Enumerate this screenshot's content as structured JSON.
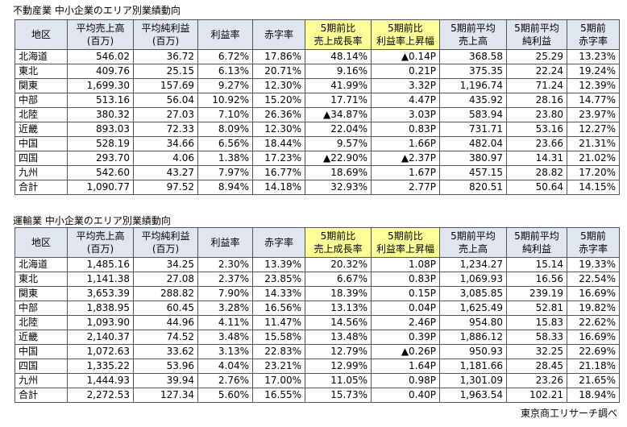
{
  "tables": [
    {
      "title": "不動産業 中小企業のエリア別業績動向",
      "header": [
        [
          "地区"
        ],
        [
          "平均売上高",
          "(百万)"
        ],
        [
          "平均純利益",
          "(百万)"
        ],
        [
          "利益率"
        ],
        [
          "赤字率"
        ],
        [
          "5期前比",
          "売上成長率"
        ],
        [
          "5期前比",
          "利益率上昇幅"
        ],
        [
          "5期前平均",
          "売上高"
        ],
        [
          "5期前平均",
          "純利益"
        ],
        [
          "5期前",
          "赤字率"
        ]
      ],
      "rows": [
        [
          "北海道",
          "546.02",
          "36.72",
          "6.72%",
          "17.86%",
          "48.14%",
          "▲0.14P",
          "368.58",
          "25.29",
          "13.23%"
        ],
        [
          "東北",
          "409.76",
          "25.15",
          "6.13%",
          "20.71%",
          "9.16%",
          "0.21P",
          "375.35",
          "22.24",
          "19.24%"
        ],
        [
          "関東",
          "1,699.30",
          "157.69",
          "9.27%",
          "12.30%",
          "41.99%",
          "3.32P",
          "1,196.74",
          "71.24",
          "12.39%"
        ],
        [
          "中部",
          "513.16",
          "56.04",
          "10.92%",
          "15.20%",
          "17.71%",
          "4.47P",
          "435.92",
          "28.16",
          "14.77%"
        ],
        [
          "北陸",
          "380.32",
          "27.03",
          "7.10%",
          "26.36%",
          "▲34.87%",
          "3.03P",
          "583.94",
          "23.80",
          "23.97%"
        ],
        [
          "近畿",
          "893.03",
          "72.33",
          "8.09%",
          "12.30%",
          "22.04%",
          "0.83P",
          "731.71",
          "53.16",
          "12.27%"
        ],
        [
          "中国",
          "528.19",
          "34.66",
          "6.56%",
          "18.44%",
          "9.57%",
          "1.66P",
          "482.04",
          "23.66",
          "21.31%"
        ],
        [
          "四国",
          "293.70",
          "4.06",
          "1.38%",
          "17.23%",
          "▲22.90%",
          "▲2.37P",
          "380.97",
          "14.31",
          "21.02%"
        ],
        [
          "九州",
          "542.60",
          "43.27",
          "7.97%",
          "16.77%",
          "18.69%",
          "1.67P",
          "457.15",
          "28.82",
          "17.20%"
        ],
        [
          "合計",
          "1,090.77",
          "97.52",
          "8.94%",
          "14.18%",
          "32.93%",
          "2.77P",
          "820.51",
          "50.64",
          "14.15%"
        ]
      ]
    },
    {
      "title": "運輸業 中小企業のエリア別業績動向",
      "header": [
        [
          "地区"
        ],
        [
          "平均売上高",
          "(百万)"
        ],
        [
          "平均純利益",
          "(百万)"
        ],
        [
          "利益率"
        ],
        [
          "赤字率"
        ],
        [
          "5期前比",
          "売上成長率"
        ],
        [
          "5期前比",
          "利益率上昇幅"
        ],
        [
          "5期前平均",
          "売上高"
        ],
        [
          "5期前平均",
          "純利益"
        ],
        [
          "5期前",
          "赤字率"
        ]
      ],
      "rows": [
        [
          "北海道",
          "1,485.16",
          "34.25",
          "2.30%",
          "13.39%",
          "20.32%",
          "1.08P",
          "1,234.27",
          "15.14",
          "19.33%"
        ],
        [
          "東北",
          "1,141.38",
          "27.08",
          "2.37%",
          "23.85%",
          "6.67%",
          "0.83P",
          "1,069.93",
          "16.56",
          "22.54%"
        ],
        [
          "関東",
          "3,653.39",
          "288.82",
          "7.90%",
          "14.33%",
          "18.39%",
          "0.15P",
          "3,085.85",
          "239.19",
          "16.69%"
        ],
        [
          "中部",
          "1,838.95",
          "60.45",
          "3.28%",
          "16.56%",
          "13.13%",
          "0.04P",
          "1,625.49",
          "52.81",
          "19.82%"
        ],
        [
          "北陸",
          "1,093.90",
          "44.96",
          "4.11%",
          "11.47%",
          "14.56%",
          "2.46P",
          "954.80",
          "15.83",
          "22.62%"
        ],
        [
          "近畿",
          "2,140.37",
          "74.52",
          "3.48%",
          "15.58%",
          "13.48%",
          "0.39P",
          "1,886.12",
          "58.33",
          "16.69%"
        ],
        [
          "中国",
          "1,072.63",
          "33.62",
          "3.13%",
          "22.83%",
          "12.79%",
          "▲0.26P",
          "950.93",
          "32.25",
          "22.69%"
        ],
        [
          "四国",
          "1,335.22",
          "53.96",
          "4.04%",
          "23.21%",
          "12.99%",
          "1.64P",
          "1,181.66",
          "28.45",
          "21.18%"
        ],
        [
          "九州",
          "1,444.93",
          "39.94",
          "2.76%",
          "17.00%",
          "11.05%",
          "0.98P",
          "1,301.09",
          "23.26",
          "21.65%"
        ],
        [
          "合計",
          "2,272.53",
          "127.34",
          "5.60%",
          "16.55%",
          "15.73%",
          "0.40P",
          "1,963.54",
          "102.21",
          "18.94%"
        ]
      ]
    }
  ],
  "footer": {
    "credit": "東京商工リサーチ調べ"
  }
}
